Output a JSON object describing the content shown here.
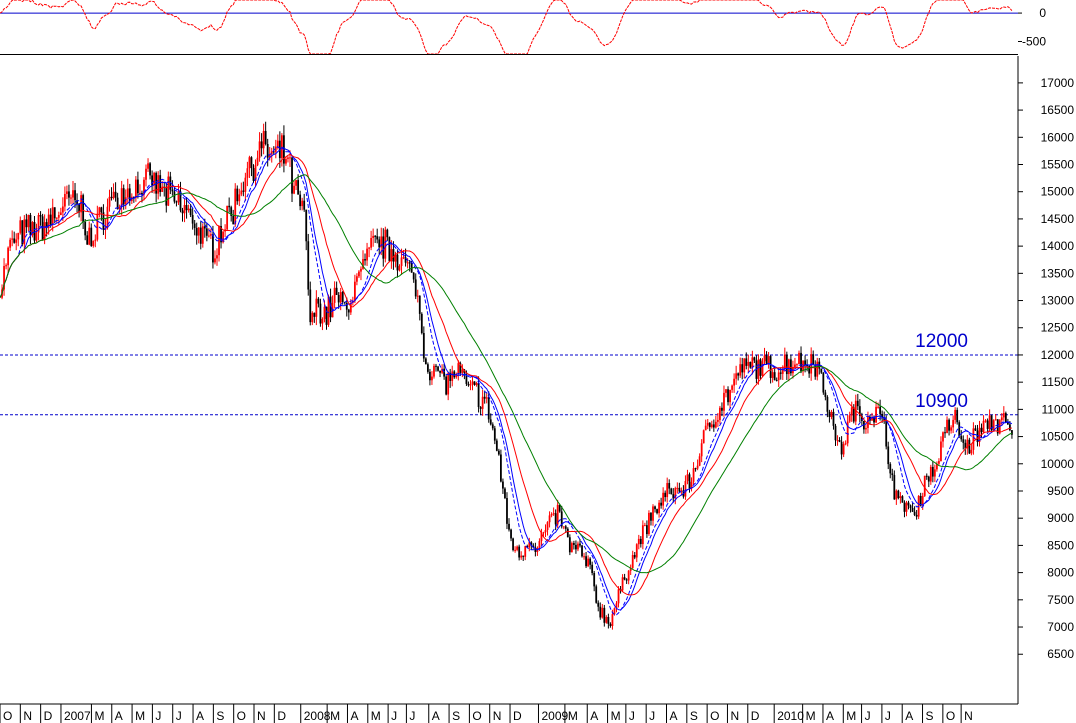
{
  "chart_data": {
    "type": "candlestick-line",
    "title": "",
    "xlabel": "",
    "ylabel": "",
    "colors": {
      "up_candle": "#ff0000",
      "down_candle": "#000000",
      "ma_fast": "#0000ff",
      "ma_fast_dashed": "#0000ff",
      "ma_mid": "#ff0000",
      "ma_slow": "#008000",
      "reference_line": "#0000cc",
      "oscillator": "#ff0000"
    },
    "price_panel": {
      "ylim": [
        6100,
        17200
      ],
      "y_ticks": [
        6500,
        7000,
        7500,
        8000,
        8500,
        9000,
        9500,
        10000,
        10500,
        11000,
        11500,
        12000,
        12500,
        13000,
        13500,
        14000,
        14500,
        15000,
        15500,
        16000,
        16500,
        17000
      ],
      "reference_levels": [
        {
          "value": 12000,
          "label": "12000"
        },
        {
          "value": 10900,
          "label": "10900"
        }
      ],
      "xlim": [
        0,
        50
      ],
      "anchors": [
        [
          0.0,
          13200
        ],
        [
          0.5,
          14000
        ],
        [
          1.0,
          14200
        ],
        [
          1.5,
          14300
        ],
        [
          2.0,
          14350
        ],
        [
          2.5,
          14500
        ],
        [
          3.0,
          14700
        ],
        [
          3.5,
          14850
        ],
        [
          4.0,
          14700
        ],
        [
          4.5,
          14000
        ],
        [
          5.0,
          14550
        ],
        [
          5.5,
          14850
        ],
        [
          6.0,
          14900
        ],
        [
          6.5,
          15050
        ],
        [
          7.0,
          15100
        ],
        [
          7.5,
          15200
        ],
        [
          8.0,
          15000
        ],
        [
          8.5,
          14850
        ],
        [
          9.0,
          14700
        ],
        [
          9.5,
          14500
        ],
        [
          10.0,
          14100
        ],
        [
          10.5,
          14000
        ],
        [
          11.0,
          14400
        ],
        [
          11.5,
          14700
        ],
        [
          12.0,
          15300
        ],
        [
          12.5,
          15600
        ],
        [
          13.0,
          15800
        ],
        [
          13.5,
          15600
        ],
        [
          14.0,
          15700
        ],
        [
          14.5,
          15000
        ],
        [
          15.0,
          14500
        ],
        [
          15.3,
          12400
        ],
        [
          15.6,
          13000
        ],
        [
          16.0,
          12700
        ],
        [
          16.5,
          13100
        ],
        [
          17.0,
          12800
        ],
        [
          17.5,
          13300
        ],
        [
          18.0,
          13700
        ],
        [
          18.5,
          14100
        ],
        [
          19.0,
          14000
        ],
        [
          19.5,
          13900
        ],
        [
          20.0,
          13600
        ],
        [
          20.5,
          13200
        ],
        [
          21.0,
          11800
        ],
        [
          21.5,
          11700
        ],
        [
          22.0,
          11500
        ],
        [
          22.5,
          11700
        ],
        [
          23.0,
          11400
        ],
        [
          23.5,
          11300
        ],
        [
          24.0,
          11000
        ],
        [
          24.5,
          10200
        ],
        [
          25.0,
          8800
        ],
        [
          25.5,
          8300
        ],
        [
          26.0,
          8600
        ],
        [
          26.5,
          8500
        ],
        [
          27.0,
          8900
        ],
        [
          27.5,
          9100
        ],
        [
          28.0,
          8500
        ],
        [
          28.5,
          8400
        ],
        [
          29.0,
          8100
        ],
        [
          29.5,
          7300
        ],
        [
          30.0,
          7100
        ],
        [
          30.5,
          7600
        ],
        [
          31.0,
          8200
        ],
        [
          31.5,
          8600
        ],
        [
          32.0,
          9000
        ],
        [
          32.5,
          9300
        ],
        [
          33.0,
          9500
        ],
        [
          33.5,
          9500
        ],
        [
          34.0,
          9700
        ],
        [
          34.5,
          10300
        ],
        [
          35.0,
          10800
        ],
        [
          35.5,
          11100
        ],
        [
          36.0,
          11400
        ],
        [
          36.5,
          11700
        ],
        [
          37.0,
          11800
        ],
        [
          37.5,
          11800
        ],
        [
          38.0,
          11700
        ],
        [
          38.5,
          11800
        ],
        [
          39.0,
          11900
        ],
        [
          39.5,
          11850
        ],
        [
          40.0,
          11950
        ],
        [
          40.5,
          11500
        ],
        [
          41.0,
          10700
        ],
        [
          41.3,
          10200
        ],
        [
          41.6,
          10500
        ],
        [
          42.0,
          11000
        ],
        [
          42.5,
          10800
        ],
        [
          43.0,
          11000
        ],
        [
          43.5,
          10700
        ],
        [
          43.8,
          10000
        ],
        [
          44.2,
          9200
        ],
        [
          44.6,
          9300
        ],
        [
          45.0,
          9000
        ],
        [
          45.5,
          9700
        ],
        [
          46.0,
          9900
        ],
        [
          46.5,
          10600
        ],
        [
          47.0,
          10800
        ],
        [
          47.5,
          10300
        ],
        [
          48.0,
          10500
        ],
        [
          48.5,
          10700
        ],
        [
          49.0,
          10800
        ],
        [
          49.5,
          10700
        ],
        [
          49.8,
          10450
        ]
      ]
    },
    "oscillator_panel": {
      "ylim": [
        -720,
        230
      ],
      "y_ticks": [
        0,
        -500
      ],
      "y_tick_labels": [
        "0",
        "-500"
      ],
      "zero_line": 0
    },
    "x_axis": {
      "xlim": [
        0,
        50
      ],
      "labels": [
        {
          "x": 0.0,
          "label": "O"
        },
        {
          "x": 1.0,
          "label": "N"
        },
        {
          "x": 2.0,
          "label": "D"
        },
        {
          "x": 3.0,
          "label": "2007"
        },
        {
          "x": 4.5,
          "label": "M"
        },
        {
          "x": 5.5,
          "label": "A"
        },
        {
          "x": 6.5,
          "label": "M"
        },
        {
          "x": 7.5,
          "label": "J"
        },
        {
          "x": 8.5,
          "label": "J"
        },
        {
          "x": 9.5,
          "label": "A"
        },
        {
          "x": 10.5,
          "label": "S"
        },
        {
          "x": 11.5,
          "label": "O"
        },
        {
          "x": 12.5,
          "label": "N"
        },
        {
          "x": 13.5,
          "label": "D"
        },
        {
          "x": 14.8,
          "label": "2008"
        },
        {
          "x": 16.1,
          "label": "M"
        },
        {
          "x": 17.1,
          "label": "A"
        },
        {
          "x": 18.1,
          "label": "M"
        },
        {
          "x": 19.1,
          "label": "J"
        },
        {
          "x": 20.0,
          "label": "J"
        },
        {
          "x": 21.1,
          "label": "A"
        },
        {
          "x": 22.1,
          "label": "S"
        },
        {
          "x": 23.1,
          "label": "O"
        },
        {
          "x": 24.1,
          "label": "N"
        },
        {
          "x": 25.1,
          "label": "D"
        },
        {
          "x": 26.5,
          "label": "2009"
        },
        {
          "x": 27.8,
          "label": "M"
        },
        {
          "x": 28.9,
          "label": "A"
        },
        {
          "x": 29.9,
          "label": "M"
        },
        {
          "x": 30.8,
          "label": "J"
        },
        {
          "x": 31.8,
          "label": "J"
        },
        {
          "x": 32.8,
          "label": "A"
        },
        {
          "x": 33.8,
          "label": "S"
        },
        {
          "x": 34.8,
          "label": "O"
        },
        {
          "x": 35.8,
          "label": "N"
        },
        {
          "x": 36.8,
          "label": "D"
        },
        {
          "x": 38.1,
          "label": "2010"
        },
        {
          "x": 39.5,
          "label": "M"
        },
        {
          "x": 40.5,
          "label": "A"
        },
        {
          "x": 41.5,
          "label": "M"
        },
        {
          "x": 42.4,
          "label": "J"
        },
        {
          "x": 43.4,
          "label": "J"
        },
        {
          "x": 44.4,
          "label": "A"
        },
        {
          "x": 45.4,
          "label": "S"
        },
        {
          "x": 46.4,
          "label": "O"
        },
        {
          "x": 47.3,
          "label": "N"
        }
      ]
    },
    "grid": false,
    "legend": "none"
  }
}
